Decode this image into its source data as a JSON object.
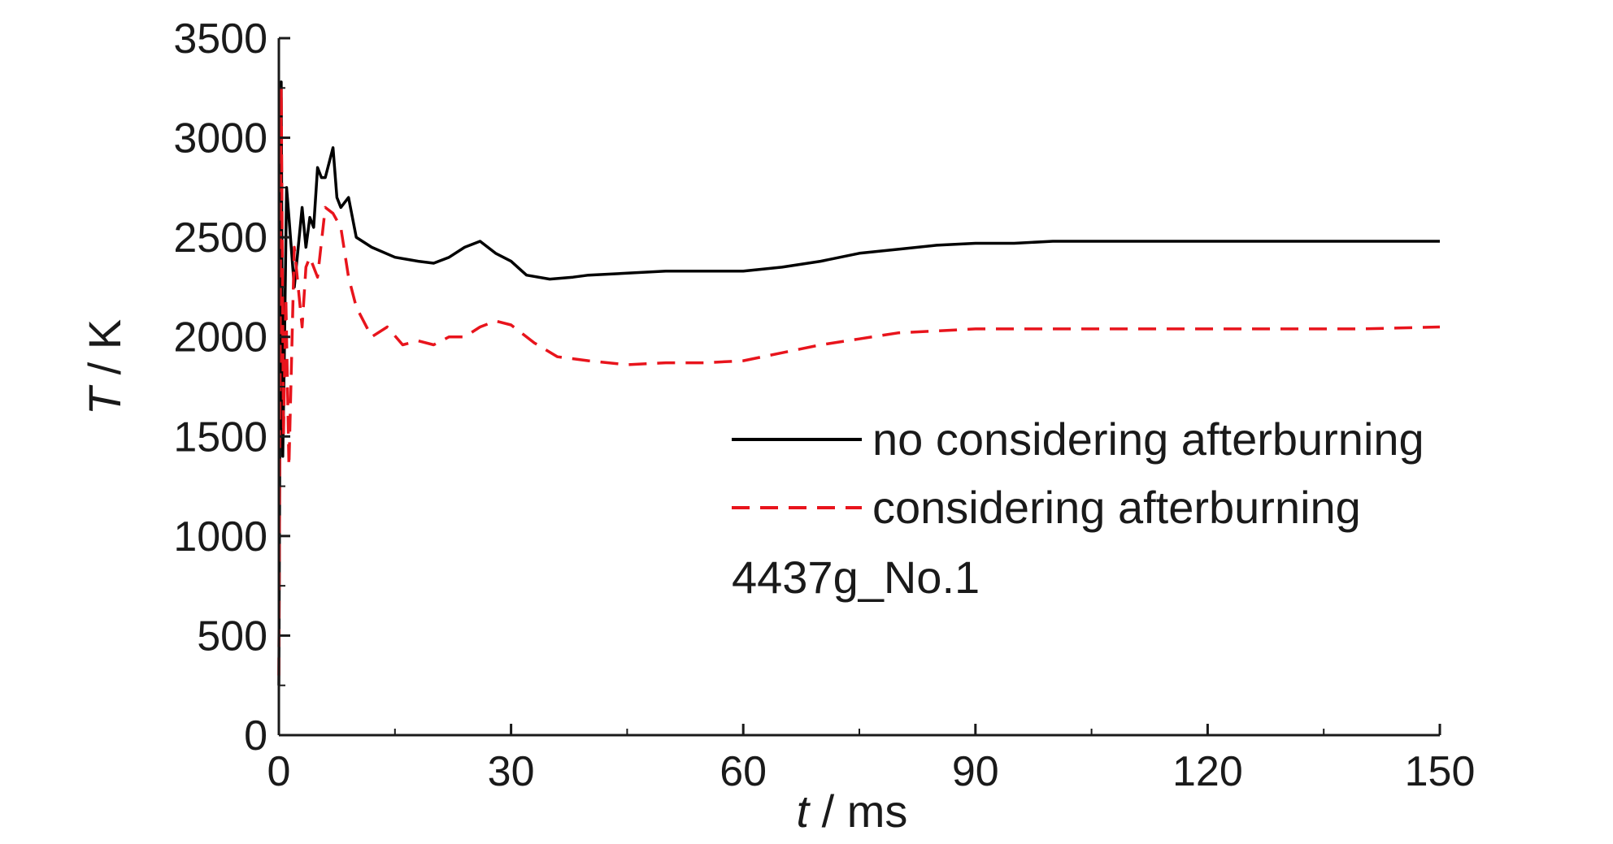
{
  "chart_data": {
    "type": "line",
    "xlabel": {
      "var": "t",
      "unit": " / ms"
    },
    "ylabel": {
      "var": "T",
      "unit": " / K"
    },
    "xlim": [
      0,
      150
    ],
    "ylim": [
      0,
      3500
    ],
    "xticks": [
      0,
      30,
      60,
      90,
      120,
      150
    ],
    "xtick_labels": [
      "0",
      "30",
      "60",
      "90",
      "120",
      "150"
    ],
    "yticks": [
      0,
      500,
      1000,
      1500,
      2000,
      2500,
      3000,
      3500
    ],
    "ytick_labels": [
      "0",
      "500",
      "1000",
      "1500",
      "2000",
      "2500",
      "3000",
      "3500"
    ],
    "grid": false,
    "legend_position": "center-right",
    "annotation": "4437g_No.1",
    "series": [
      {
        "name": "no considering afterburning",
        "color": "#000000",
        "dash": "solid",
        "x": [
          0,
          0.3,
          0.5,
          0.7,
          1,
          1.3,
          2,
          3,
          3.5,
          4,
          4.5,
          5,
          5.5,
          6,
          7,
          7.5,
          8,
          9,
          10,
          12,
          15,
          18,
          20,
          22,
          24,
          26,
          28,
          30,
          32,
          35,
          38,
          40,
          45,
          50,
          55,
          60,
          65,
          70,
          75,
          80,
          85,
          90,
          95,
          100,
          110,
          120,
          130,
          140,
          150
        ],
        "y": [
          250,
          3280,
          1400,
          1900,
          2750,
          2600,
          2250,
          2650,
          2450,
          2600,
          2550,
          2850,
          2800,
          2800,
          2950,
          2700,
          2650,
          2700,
          2500,
          2450,
          2400,
          2380,
          2370,
          2400,
          2450,
          2480,
          2420,
          2380,
          2310,
          2290,
          2300,
          2310,
          2320,
          2330,
          2330,
          2330,
          2350,
          2380,
          2420,
          2440,
          2460,
          2470,
          2470,
          2480,
          2480,
          2480,
          2480,
          2480,
          2480
        ]
      },
      {
        "name": "considering afterburning",
        "color": "#e8141c",
        "dash": "dashed",
        "x": [
          0,
          0.3,
          0.6,
          0.9,
          1.3,
          2,
          3,
          3.5,
          4,
          5,
          6,
          7,
          8,
          9,
          10,
          12,
          14,
          16,
          18,
          20,
          22,
          24,
          26,
          28,
          30,
          33,
          36,
          40,
          45,
          50,
          55,
          60,
          65,
          70,
          75,
          80,
          85,
          90,
          100,
          110,
          120,
          130,
          140,
          150
        ],
        "y": [
          300,
          3250,
          1500,
          2200,
          1350,
          2450,
          2050,
          2350,
          2400,
          2300,
          2650,
          2620,
          2550,
          2300,
          2150,
          2000,
          2050,
          1960,
          1980,
          1960,
          2000,
          2000,
          2050,
          2080,
          2060,
          1970,
          1900,
          1880,
          1860,
          1870,
          1870,
          1880,
          1920,
          1960,
          1990,
          2020,
          2030,
          2040,
          2040,
          2040,
          2040,
          2040,
          2040,
          2050
        ]
      }
    ]
  }
}
